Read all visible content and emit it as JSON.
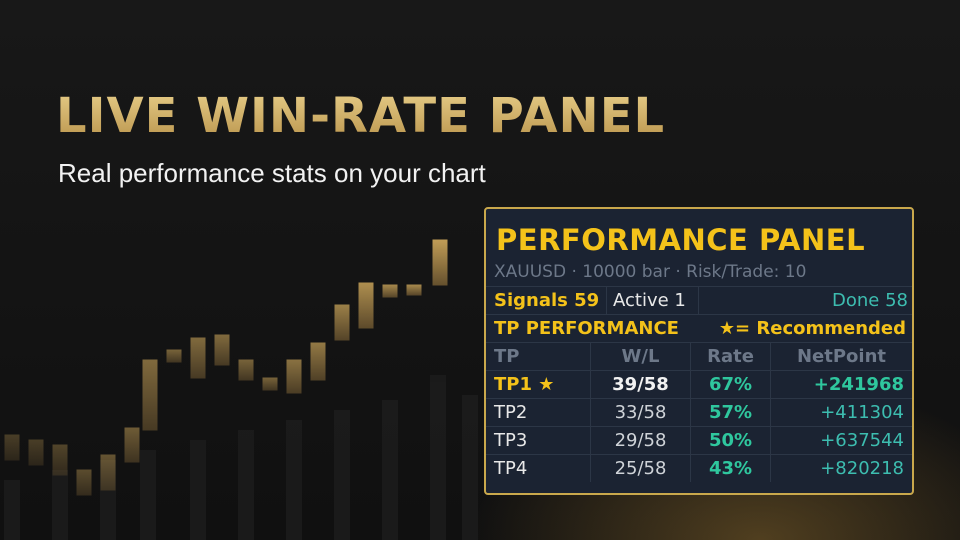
{
  "header": {
    "title": "LIVE WIN-RATE PANEL",
    "subtitle": "Real performance stats on your chart"
  },
  "panel": {
    "title": "PERFORMANCE PANEL",
    "info": "XAUUSD · 10000 bar · Risk/Trade: 10",
    "summary": [
      "Signals 59",
      "Active 1",
      "Done 58"
    ],
    "section": "TP PERFORMANCE",
    "legend": "★= Recommended"
  },
  "table": {
    "header": [
      "TP",
      "W/L",
      "Rate",
      "NetPoint"
    ],
    "rows": [
      [
        "TP1 ★",
        "39/58",
        "67%",
        "+241968"
      ],
      [
        "TP2",
        "33/58",
        "57%",
        "+411304"
      ],
      [
        "TP3",
        "29/58",
        "50%",
        "+637544"
      ],
      [
        "TP4",
        "25/58",
        "43%",
        "+820218"
      ]
    ]
  }
}
